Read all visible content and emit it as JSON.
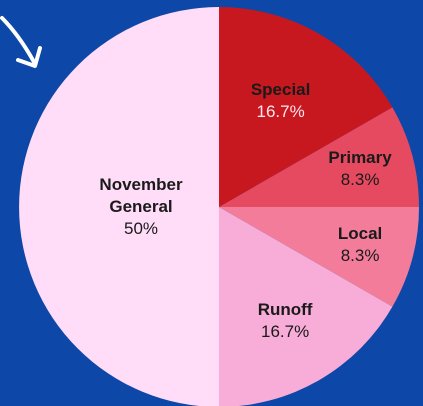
{
  "chart_data": {
    "type": "pie",
    "categories": [
      "Special",
      "Primary",
      "Local",
      "Runoff",
      "November General"
    ],
    "values": [
      16.7,
      8.3,
      8.3,
      16.7,
      50
    ],
    "value_labels": [
      "16.7%",
      "8.3%",
      "8.3%",
      "16.7%",
      "50%"
    ],
    "colors": [
      "#c8181f",
      "#e64a60",
      "#f27c9a",
      "#f8acd8",
      "#ffdcf8"
    ]
  }
}
